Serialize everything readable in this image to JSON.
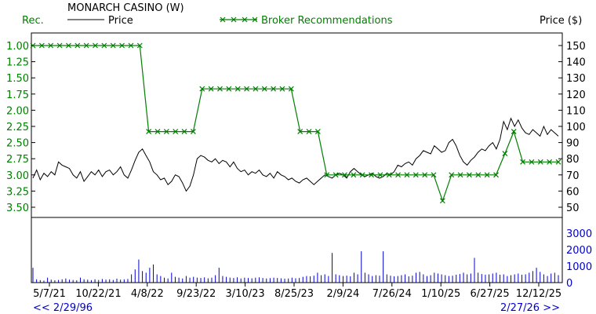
{
  "chart_data": {
    "type": "line",
    "title": "MONARCH CASINO (W)",
    "left_axis_label": "Rec.",
    "right_axis_label": "Price ($)",
    "legend": {
      "price_label": "Price",
      "rec_label": "Broker Recommendations"
    },
    "colors": {
      "price": "#000000",
      "recommendation": "#007f00",
      "volume": "#0000cc",
      "rec_axis": "#007f00",
      "price_axis": "#000000"
    },
    "rec_axis": {
      "ticks": [
        "1.00",
        "1.25",
        "1.50",
        "1.75",
        "2.00",
        "2.25",
        "2.50",
        "2.75",
        "3.00",
        "3.25",
        "3.50"
      ],
      "min": 1.0,
      "max": 3.5,
      "inverted": true
    },
    "price_axis": {
      "ticks": [
        "150",
        "140",
        "130",
        "120",
        "110",
        "100",
        "90",
        "80",
        "70",
        "60",
        "50"
      ],
      "min": 50,
      "max": 150
    },
    "volume_axis": {
      "ticks": [
        "3000",
        "2000",
        "1000",
        "0"
      ],
      "max": 3000
    },
    "x_axis": {
      "ticks": [
        "5/7/21",
        "10/22/21",
        "4/8/22",
        "9/23/22",
        "3/10/23",
        "8/25/23",
        "2/9/24",
        "7/26/24",
        "1/10/25",
        "6/27/25",
        "12/12/25"
      ]
    },
    "range_start": "<< 2/29/96",
    "range_end": "2/27/26 >>",
    "recommendations": [
      1.0,
      1.0,
      1.0,
      1.0,
      1.0,
      1.0,
      1.0,
      1.0,
      1.0,
      1.0,
      1.0,
      1.0,
      1.0,
      2.33,
      2.33,
      2.33,
      2.33,
      2.33,
      2.33,
      1.67,
      1.67,
      1.67,
      1.67,
      1.67,
      1.67,
      1.67,
      1.67,
      1.67,
      1.67,
      1.67,
      2.33,
      2.33,
      2.33,
      3.0,
      3.0,
      3.0,
      3.0,
      3.0,
      3.0,
      3.0,
      3.0,
      3.0,
      3.0,
      3.0,
      3.0,
      3.0,
      3.4,
      3.0,
      3.0,
      3.0,
      3.0,
      3.0,
      3.0,
      2.67,
      2.33,
      2.8,
      2.8,
      2.8,
      2.8,
      2.8
    ],
    "price": [
      68,
      73,
      67,
      71,
      69,
      72,
      70,
      78,
      76,
      75,
      74,
      70,
      68,
      72,
      66,
      69,
      72,
      70,
      73,
      69,
      72,
      73,
      70,
      72,
      75,
      70,
      68,
      73,
      79,
      84,
      86,
      82,
      78,
      72,
      70,
      67,
      68,
      64,
      66,
      70,
      69,
      65,
      60,
      63,
      70,
      80,
      82,
      81,
      79,
      78,
      80,
      77,
      79,
      78,
      75,
      78,
      74,
      72,
      73,
      70,
      72,
      71,
      73,
      70,
      69,
      71,
      68,
      72,
      70,
      69,
      67,
      68,
      66,
      65,
      67,
      68,
      66,
      64,
      66,
      68,
      70,
      69,
      68,
      70,
      71,
      70,
      68,
      72,
      74,
      72,
      70,
      69,
      70,
      71,
      69,
      68,
      69,
      71,
      70,
      72,
      76,
      75,
      77,
      78,
      76,
      80,
      82,
      85,
      84,
      83,
      88,
      86,
      84,
      85,
      90,
      92,
      88,
      82,
      78,
      76,
      79,
      81,
      84,
      86,
      85,
      88,
      90,
      86,
      92,
      103,
      98,
      105,
      100,
      104,
      99,
      96,
      95,
      98,
      96,
      94,
      100,
      95,
      98,
      96,
      94
    ],
    "volume": [
      900,
      200,
      150,
      120,
      300,
      180,
      140,
      160,
      200,
      250,
      180,
      160,
      140,
      300,
      200,
      180,
      150,
      200,
      160,
      220,
      180,
      200,
      160,
      240,
      180,
      200,
      220,
      500,
      800,
      1400,
      700,
      600,
      900,
      1100,
      500,
      400,
      300,
      250,
      600,
      350,
      300,
      250,
      400,
      300,
      350,
      300,
      280,
      320,
      260,
      300,
      450,
      900,
      400,
      350,
      300,
      280,
      320,
      250,
      300,
      280,
      260,
      300,
      320,
      280,
      250,
      270,
      300,
      280,
      260,
      240,
      250,
      300,
      260,
      280,
      350,
      400,
      380,
      420,
      600,
      450,
      500,
      400,
      1800,
      500,
      450,
      400,
      420,
      380,
      600,
      500,
      1900,
      600,
      500,
      400,
      450,
      420,
      1900,
      500,
      420,
      380,
      400,
      450,
      500,
      380,
      420,
      600,
      650,
      500,
      400,
      450,
      600,
      550,
      500,
      450,
      400,
      420,
      480,
      520,
      600,
      500,
      550,
      1500,
      600,
      520,
      480,
      500,
      550,
      600,
      480,
      500,
      400,
      450,
      500,
      550,
      480,
      500,
      600,
      700,
      900,
      650,
      500,
      400,
      550,
      600,
      450
    ]
  }
}
